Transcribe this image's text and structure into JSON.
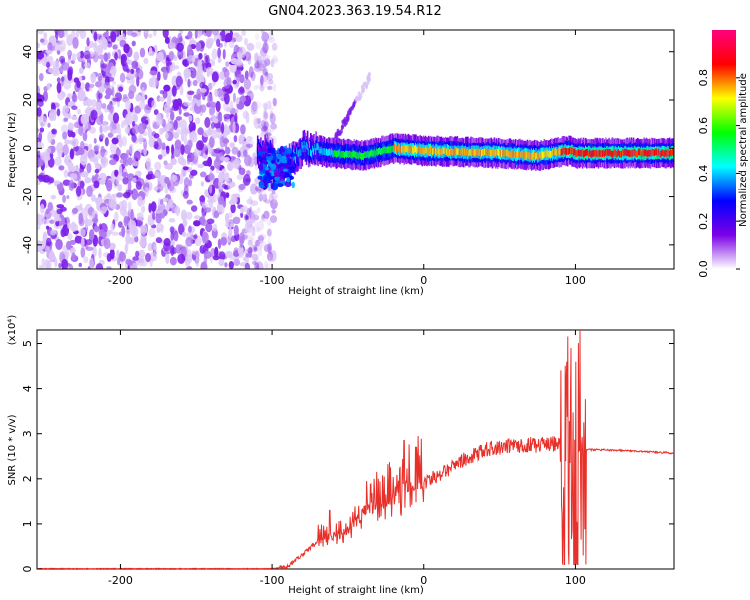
{
  "title": "GN04.2023.363.19.54.R12",
  "chart_data": [
    {
      "type": "heatmap",
      "xlabel": "Height of straight line (km)",
      "ylabel": "Frequency (Hz)",
      "xlim": [
        -255,
        165
      ],
      "ylim": [
        -50,
        49
      ],
      "xticks": [
        -200,
        -100,
        0,
        100
      ],
      "yticks": [
        -40,
        -20,
        0,
        20,
        40
      ],
      "colorbar": {
        "label": "Normalized spectral amplitude",
        "range": [
          0,
          1
        ],
        "ticks": [
          "0.0",
          "0.2",
          "0.4",
          "0.6",
          "0.8"
        ],
        "colormap": [
          "#ffffff",
          "#7b00e6",
          "#0000ff",
          "#00ffff",
          "#00ff00",
          "#ffff00",
          "#ff0000",
          "#ff0080"
        ]
      },
      "ridge": {
        "description_points": [
          [
            -100,
            -10
          ],
          [
            -90,
            -6
          ],
          [
            -80,
            0
          ],
          [
            -60,
            -2
          ],
          [
            -40,
            -3
          ],
          [
            -20,
            0
          ],
          [
            0,
            -1
          ],
          [
            50,
            -2
          ],
          [
            75,
            -3
          ],
          [
            95,
            -1
          ],
          [
            100,
            -2
          ],
          [
            165,
            -2
          ]
        ]
      }
    },
    {
      "type": "line",
      "xlabel": "Height of straight line (km)",
      "ylabel": "SNR (10 * v/v)",
      "yscale_label": "(x10⁴)",
      "xlim": [
        -255,
        165
      ],
      "ylim": [
        0,
        5.3
      ],
      "xticks": [
        -200,
        -100,
        0,
        100
      ],
      "yticks": [
        0,
        1,
        2,
        3,
        4,
        5
      ],
      "color": "#e8302a",
      "envelope": [
        [
          -255,
          0.01
        ],
        [
          -100,
          0.01
        ],
        [
          -90,
          0.05
        ],
        [
          -70,
          0.6
        ],
        [
          -50,
          0.8
        ],
        [
          -40,
          1.2
        ],
        [
          -20,
          1.5
        ],
        [
          0,
          1.9
        ],
        [
          20,
          2.3
        ],
        [
          40,
          2.65
        ],
        [
          60,
          2.75
        ],
        [
          80,
          2.75
        ],
        [
          90,
          2.8
        ],
        [
          100,
          2.75
        ],
        [
          106,
          2.65
        ],
        [
          130,
          2.63
        ],
        [
          165,
          2.57
        ]
      ],
      "spikes": [
        [
          -62,
          1.3
        ],
        [
          -30,
          2.0
        ],
        [
          -13,
          2.85
        ],
        [
          97,
          4.9
        ],
        [
          103,
          5.3
        ],
        [
          99,
          0.1
        ],
        [
          105,
          0.3
        ]
      ]
    }
  ]
}
